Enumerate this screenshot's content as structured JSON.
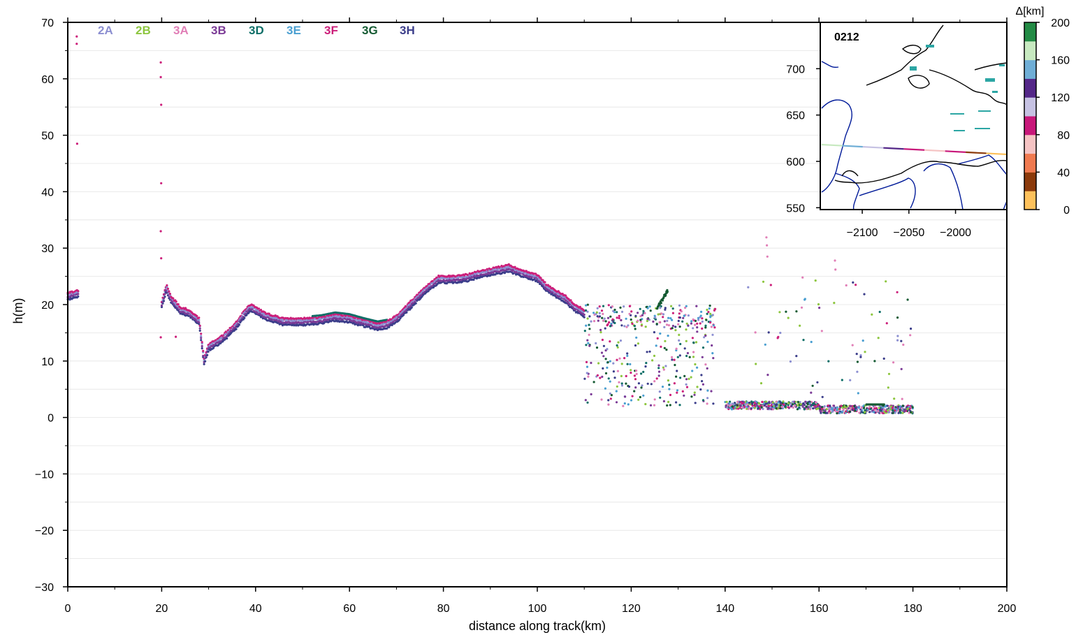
{
  "chart_data": [
    {
      "type": "scatter",
      "title": "",
      "xlabel": "distance along track(km)",
      "ylabel": "h(m)",
      "xlim": [
        0,
        200
      ],
      "ylim": [
        -30,
        70
      ],
      "x_ticks": [
        "0",
        "20",
        "40",
        "60",
        "80",
        "100",
        "120",
        "140",
        "160",
        "180",
        "200"
      ],
      "y_ticks": [
        "70",
        "60",
        "50",
        "40",
        "30",
        "20",
        "10",
        "0",
        "−10",
        "−20",
        "−30"
      ],
      "grid": true,
      "legend_placement": "top-left",
      "series": [
        {
          "name": "2A",
          "color": "#8c8fd1"
        },
        {
          "name": "2B",
          "color": "#8dc63f"
        },
        {
          "name": "3A",
          "color": "#e17fb7"
        },
        {
          "name": "3B",
          "color": "#7b3a96"
        },
        {
          "name": "3D",
          "color": "#0e6e67"
        },
        {
          "name": "3E",
          "color": "#4a9fd1"
        },
        {
          "name": "3F",
          "color": "#cc1f7a"
        },
        {
          "name": "3G",
          "color": "#145a32"
        },
        {
          "name": "3H",
          "color": "#3b3d8a"
        }
      ],
      "profile": {
        "x": [
          0,
          2,
          20,
          21,
          22,
          24,
          26,
          28,
          29,
          30,
          33,
          36,
          38,
          39,
          42,
          46,
          50,
          54,
          57,
          60,
          63,
          66,
          68,
          70,
          73,
          76,
          79,
          82,
          85,
          88,
          91,
          94,
          97,
          100,
          102,
          104,
          106,
          108,
          110
        ],
        "y": [
          21.5,
          22,
          20,
          23,
          21,
          19,
          18.5,
          17,
          10,
          12.5,
          14,
          16.5,
          18.8,
          19.5,
          18,
          17,
          17,
          17.3,
          17.8,
          17.5,
          16.8,
          16.2,
          16.5,
          17.5,
          20,
          22.5,
          24.5,
          24.5,
          24.8,
          25.5,
          26,
          26.5,
          25.5,
          24.8,
          23,
          22,
          21,
          19.5,
          18.5
        ]
      }
    },
    {
      "type": "line",
      "title": "0212",
      "x_ticks": [
        "−2100",
        "−2050",
        "−2000"
      ],
      "y_ticks": [
        "700",
        "650",
        "600",
        "550"
      ],
      "xlim": [
        -2145,
        -1945
      ],
      "ylim": [
        548,
        750
      ]
    },
    {
      "type": "heatmap",
      "title": "Δ[km]",
      "ticks": [
        "200",
        "160",
        "120",
        "80",
        "40",
        "0"
      ],
      "range": [
        0,
        200
      ],
      "bands": [
        "#fdc15b",
        "#8b3a0b",
        "#f07a50",
        "#f5c3c3",
        "#c8187a",
        "#c6c2e3",
        "#542788",
        "#6faed6",
        "#c7e9c0",
        "#238b45"
      ]
    }
  ]
}
